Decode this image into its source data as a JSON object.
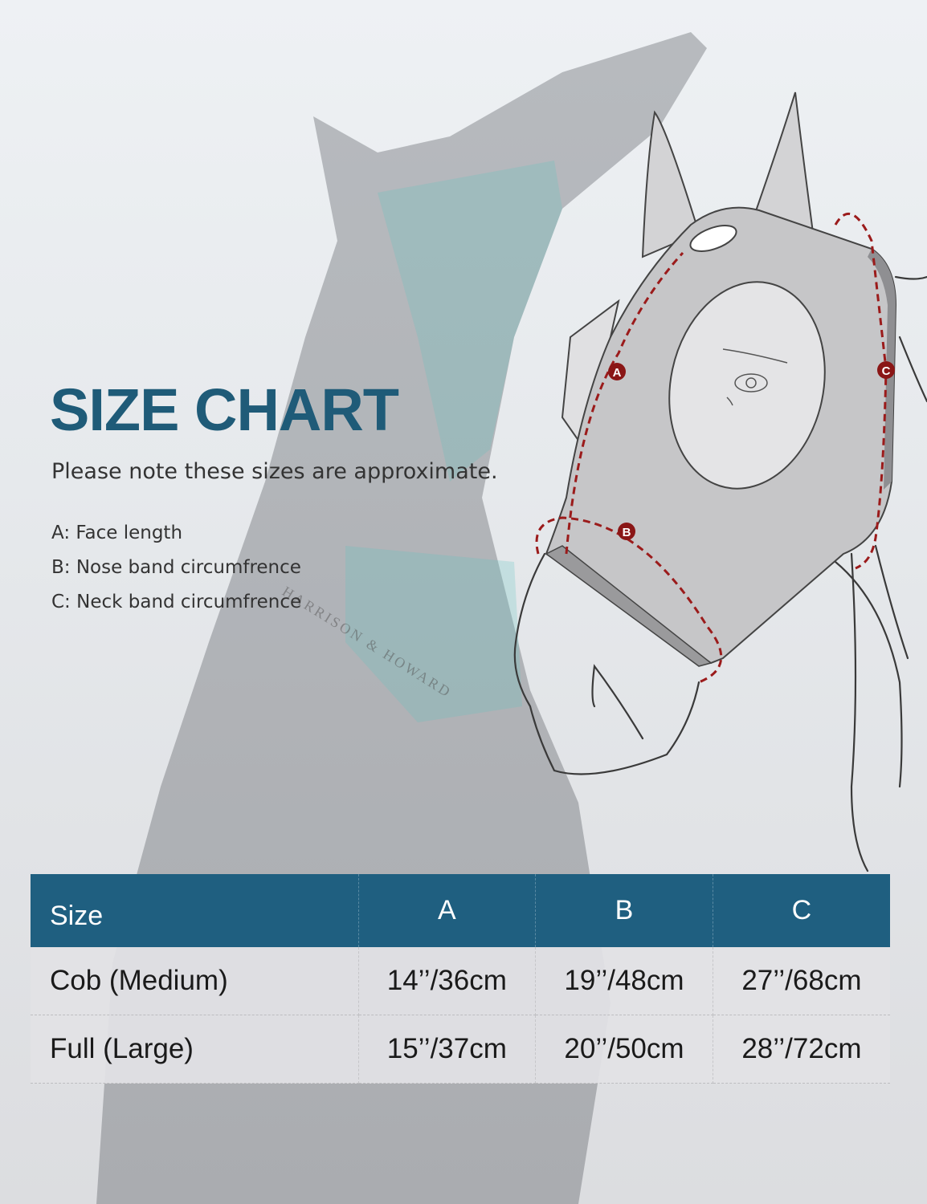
{
  "title": "SIZE CHART",
  "note": "Please note these sizes are approximate.",
  "legend": [
    "A: Face length",
    "B: Nose band circumfrence",
    "C: Neck band circumfrence"
  ],
  "diagram": {
    "markers": [
      "A",
      "B",
      "C"
    ],
    "watermark": "HARRISON & HOWARD"
  },
  "table": {
    "headers": [
      "Size",
      "A",
      "B",
      "C"
    ],
    "rows": [
      [
        "Cob (Medium)",
        "14’’/36cm",
        "19’’/48cm",
        "27’’/68cm"
      ],
      [
        "Full (Large)",
        "15’’/37cm",
        "20’’/50cm",
        "28’’/72cm"
      ]
    ]
  },
  "colors": {
    "title": "#1f5b78",
    "table_header": "#1f5f80",
    "measure_line": "#9b1b1b",
    "mask": "#c6c6c8"
  }
}
